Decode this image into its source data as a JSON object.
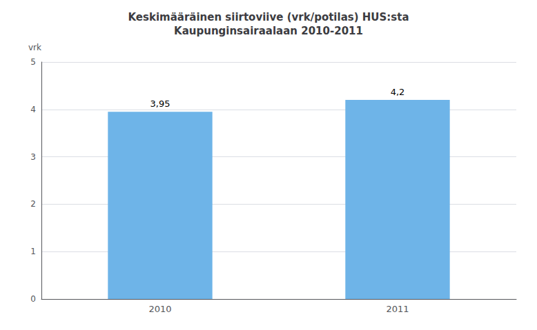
{
  "chart_data": {
    "type": "bar",
    "title": "Keskimääräinen siirtoviive (vrk/potilas) HUS:sta\nKaupunginsairaalaan 2010-2011",
    "ylabel": "vrk",
    "categories": [
      "2010",
      "2011"
    ],
    "values": [
      3.95,
      4.2
    ],
    "value_labels": [
      "3,95",
      "4,2"
    ],
    "data_labels": true,
    "color": "#6EB4E8",
    "ylim": [
      0,
      5
    ],
    "yticks": [
      0,
      1,
      2,
      3,
      4,
      5
    ],
    "grid": true
  }
}
